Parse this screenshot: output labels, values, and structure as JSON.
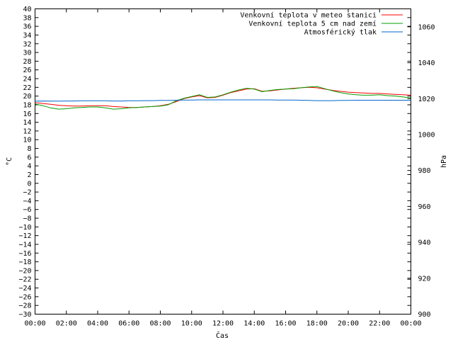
{
  "chart_data": {
    "type": "line",
    "xlabel": "Čas",
    "ylabel_left": "°C",
    "ylabel_right": "hPa",
    "x_ticks": [
      "00:00",
      "02:00",
      "04:00",
      "06:00",
      "08:00",
      "10:00",
      "12:00",
      "14:00",
      "16:00",
      "18:00",
      "20:00",
      "22:00",
      "00:00"
    ],
    "x_range_hours": [
      0,
      24
    ],
    "ylim_left": [
      -30,
      40
    ],
    "y_step_left": 2,
    "ylim_right": [
      900,
      1070
    ],
    "y_ticks_right": [
      900,
      920,
      940,
      960,
      980,
      1000,
      1020,
      1040,
      1060
    ],
    "legend_position": "top-right",
    "grid": false,
    "x_hours": [
      0,
      0.5,
      1,
      1.5,
      2,
      2.5,
      3,
      3.5,
      4,
      4.5,
      5,
      5.5,
      6,
      6.5,
      7,
      7.5,
      8,
      8.5,
      9,
      9.5,
      10,
      10.5,
      11,
      11.5,
      12,
      12.5,
      13,
      13.5,
      14,
      14.5,
      15,
      15.5,
      16,
      16.5,
      17,
      17.5,
      18,
      18.5,
      19,
      19.5,
      20,
      20.5,
      21,
      21.5,
      22,
      22.5,
      23,
      23.5,
      24
    ],
    "series": [
      {
        "name": "Venkovní teplota v meteo stanici",
        "color": "#ff0000",
        "axis": "left",
        "values": [
          18.5,
          18.3,
          18.1,
          17.9,
          17.8,
          17.7,
          17.7,
          17.8,
          17.8,
          17.8,
          17.6,
          17.5,
          17.4,
          17.4,
          17.5,
          17.6,
          17.8,
          18.1,
          18.7,
          19.4,
          19.8,
          20.1,
          19.6,
          19.7,
          20.2,
          20.8,
          21.2,
          21.6,
          21.7,
          21.1,
          21.2,
          21.4,
          21.6,
          21.8,
          21.9,
          22.0,
          21.9,
          21.6,
          21.3,
          21.1,
          20.9,
          20.8,
          20.7,
          20.6,
          20.6,
          20.5,
          20.4,
          20.3,
          20.2
        ]
      },
      {
        "name": "Venkovní teplota 5 cm nad zemí",
        "color": "#00a000",
        "axis": "left",
        "values": [
          18.2,
          17.8,
          17.3,
          17.0,
          17.1,
          17.3,
          17.4,
          17.5,
          17.5,
          17.3,
          17.0,
          17.1,
          17.3,
          17.4,
          17.5,
          17.6,
          17.7,
          18.0,
          18.9,
          19.5,
          19.9,
          20.3,
          19.7,
          19.8,
          20.3,
          20.9,
          21.4,
          21.8,
          21.6,
          21.0,
          21.3,
          21.5,
          21.6,
          21.7,
          21.9,
          22.1,
          22.2,
          21.7,
          21.2,
          20.8,
          20.5,
          20.3,
          20.2,
          20.2,
          20.3,
          20.1,
          20.0,
          19.8,
          19.6
        ]
      },
      {
        "name": "Atmosférický tlak",
        "color": "#0066cc",
        "axis": "right",
        "values": [
          1018.6,
          1018.7,
          1018.6,
          1018.6,
          1018.7,
          1018.7,
          1018.8,
          1018.8,
          1018.8,
          1018.8,
          1018.7,
          1018.7,
          1018.8,
          1018.8,
          1018.9,
          1018.9,
          1019.0,
          1019.0,
          1019.1,
          1019.2,
          1019.2,
          1019.3,
          1019.3,
          1019.3,
          1019.3,
          1019.3,
          1019.3,
          1019.3,
          1019.3,
          1019.3,
          1019.3,
          1019.2,
          1019.2,
          1019.2,
          1019.1,
          1019.0,
          1018.9,
          1018.9,
          1018.9,
          1019.0,
          1019.0,
          1019.1,
          1019.1,
          1019.1,
          1019.1,
          1019.1,
          1019.1,
          1019.1,
          1019.1
        ]
      }
    ]
  }
}
